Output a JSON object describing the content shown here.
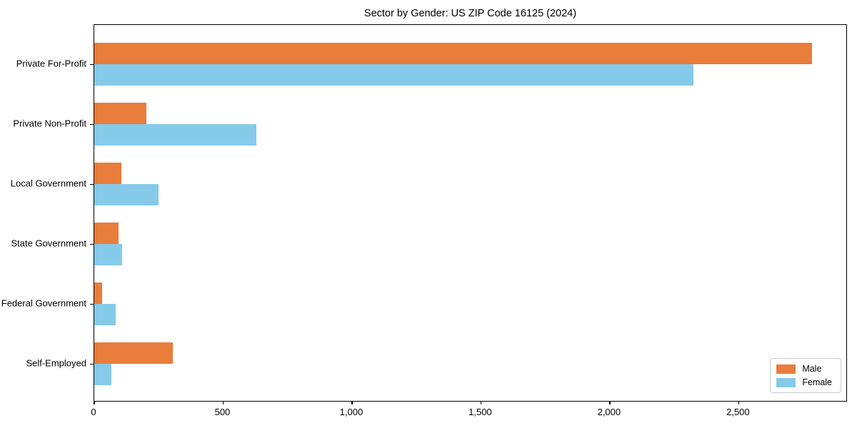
{
  "title": "Sector by Gender: US ZIP Code 16125 (2024)",
  "colors": {
    "male": "#E87D3C",
    "female": "#85CBE9",
    "spine": "#000000",
    "text": "#000000",
    "legend_border": "#cccccc",
    "background": "#ffffff"
  },
  "legend": {
    "items": [
      {
        "label": "Male",
        "color": "#E87D3C"
      },
      {
        "label": "Female",
        "color": "#85CBE9"
      }
    ],
    "position": "lower right"
  },
  "chart_data": {
    "type": "bar",
    "orientation": "horizontal",
    "title": "Sector by Gender: US ZIP Code 16125 (2024)",
    "categories": [
      "Private For-Profit",
      "Private Non-Profit",
      "Local Government",
      "State Government",
      "Federal Government",
      "Self-Employed"
    ],
    "series": [
      {
        "name": "Male",
        "color": "#E87D3C",
        "values": [
          2784,
          202,
          106,
          93,
          31,
          306
        ]
      },
      {
        "name": "Female",
        "color": "#85CBE9",
        "values": [
          2324,
          628,
          248,
          108,
          83,
          65
        ]
      }
    ],
    "xlabel": "",
    "ylabel": "",
    "xlim": [
      0,
      2923
    ],
    "xticks": [
      0,
      500,
      1000,
      1500,
      2000,
      2500
    ],
    "xtick_labels": [
      "0",
      "500",
      "1,000",
      "1,500",
      "2,000",
      "2,500"
    ],
    "grid": false,
    "legend_position": "lower right"
  }
}
